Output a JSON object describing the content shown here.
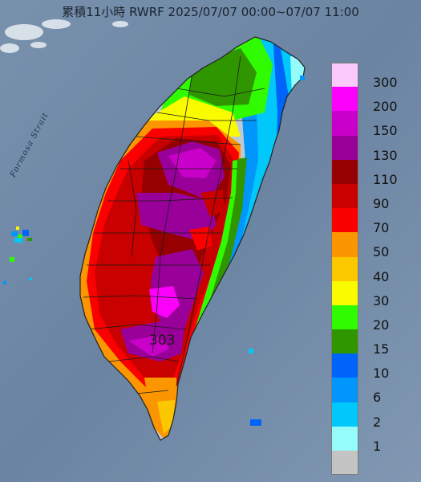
{
  "title": "累積11小時 RWRF 2025/07/07 00:00~07/07 11:00",
  "strait_label": "Formosa Strait",
  "max_value_label": "303",
  "legend": {
    "items": [
      {
        "label": "300",
        "color": "#fbc9fb"
      },
      {
        "label": "200",
        "color": "#fb00fb"
      },
      {
        "label": "150",
        "color": "#c900c9"
      },
      {
        "label": "130",
        "color": "#990099"
      },
      {
        "label": "110",
        "color": "#960000"
      },
      {
        "label": "90",
        "color": "#c80000"
      },
      {
        "label": "70",
        "color": "#fb0000"
      },
      {
        "label": "50",
        "color": "#fb9600"
      },
      {
        "label": "40",
        "color": "#fbc800"
      },
      {
        "label": "30",
        "color": "#fbfb00"
      },
      {
        "label": "20",
        "color": "#30fb00"
      },
      {
        "label": "15",
        "color": "#309600"
      },
      {
        "label": "10",
        "color": "#0064fb"
      },
      {
        "label": "6",
        "color": "#0096fb"
      },
      {
        "label": "2",
        "color": "#00c8fb"
      },
      {
        "label": "1",
        "color": "#96fbfb"
      },
      {
        "label": "",
        "color": "#c4c4c4"
      }
    ]
  },
  "colors": {
    "sea": "#6f88a6",
    "sea_light": "#9fb3c8",
    "island_grey": "#bfc9d3",
    "boundary": "#111111"
  }
}
